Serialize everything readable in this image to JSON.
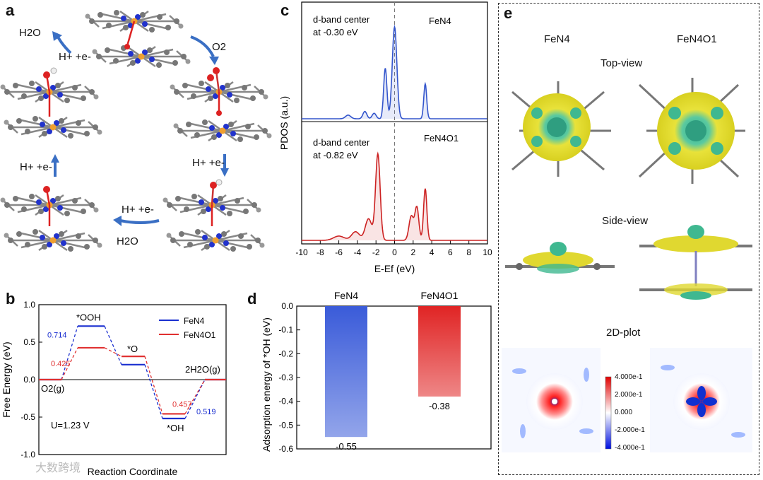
{
  "panels": {
    "a": "a",
    "b": "b",
    "c": "c",
    "d": "d",
    "e": "e"
  },
  "panel_a": {
    "h2o_top": "H2O",
    "hplus_top": "H+ +e-",
    "o2": "O2",
    "hplus_right": "H+ +e-",
    "hplus_bottom": "H+ +e-",
    "h2o_bottom": "H2O",
    "hplus_left": "H+ +e-"
  },
  "chart_data": [
    {
      "id": "b",
      "type": "line",
      "title": "",
      "xlabel": "Reaction Coordinate",
      "ylabel": "Free Energy (eV)",
      "ylim": [
        -1.0,
        1.0
      ],
      "yticks": [
        "1.0",
        "0.5",
        "0.0",
        "-0.5",
        "-1.0"
      ],
      "annotation": "U=1.23 V",
      "states": [
        "O2(g)",
        "*OOH",
        "*O",
        "*OH",
        "2H2O(g)"
      ],
      "series": [
        {
          "name": "FeN4",
          "color": "#1a2fd0",
          "values": [
            0.0,
            0.714,
            0.2,
            -0.519,
            0.0
          ],
          "step_labels": [
            "0.714",
            "0.519"
          ]
        },
        {
          "name": "FeN4O1",
          "color": "#e03030",
          "values": [
            0.0,
            0.425,
            0.31,
            -0.457,
            0.0
          ],
          "step_labels": [
            "0.425",
            "0.457"
          ]
        }
      ]
    },
    {
      "id": "c",
      "type": "area",
      "xlabel": "E-Ef (eV)",
      "ylabel": "PDOS (a.u.)",
      "xlim": [
        -10,
        10
      ],
      "xticks": [
        "-10",
        "-8",
        "-6",
        "-4",
        "-2",
        "0",
        "2",
        "4",
        "6",
        "8",
        "10"
      ],
      "series": [
        {
          "name": "FeN4",
          "label": "FeN4",
          "note_line1": "d-band center",
          "note_line2": "at -0.30 eV",
          "d_band_center": -0.3,
          "color": "#3355cc",
          "peaks": [
            {
              "x": 0.0,
              "h": 1.0,
              "w": 0.35
            },
            {
              "x": -1.0,
              "h": 0.55,
              "w": 0.25
            },
            {
              "x": 3.3,
              "h": 0.38,
              "w": 0.22
            },
            {
              "x": -2.2,
              "h": 0.06,
              "w": 0.3
            },
            {
              "x": -3.2,
              "h": 0.08,
              "w": 0.3
            },
            {
              "x": -5.0,
              "h": 0.04,
              "w": 0.4
            }
          ]
        },
        {
          "name": "FeN4O1",
          "label": "FeN4O1",
          "note_line1": "d-band center",
          "note_line2": "at -0.82 eV",
          "d_band_center": -0.82,
          "color": "#cc2222",
          "peaks": [
            {
              "x": -1.8,
              "h": 1.0,
              "w": 0.35
            },
            {
              "x": -2.8,
              "h": 0.25,
              "w": 0.5
            },
            {
              "x": -4.2,
              "h": 0.1,
              "w": 0.6
            },
            {
              "x": 1.8,
              "h": 0.28,
              "w": 0.35
            },
            {
              "x": 2.4,
              "h": 0.38,
              "w": 0.3
            },
            {
              "x": 3.3,
              "h": 0.6,
              "w": 0.25
            },
            {
              "x": -6.0,
              "h": 0.05,
              "w": 0.8
            }
          ]
        }
      ]
    },
    {
      "id": "d",
      "type": "bar",
      "ylabel": "Adsorption energy of *OH (eV)",
      "categories": [
        "FeN4",
        "FeN4O1"
      ],
      "values": [
        -0.55,
        -0.38
      ],
      "value_labels": [
        "-0.55",
        "-0.38"
      ],
      "colors": [
        "#3a5bd9",
        "#e02424"
      ],
      "ylim": [
        -0.6,
        0.0
      ],
      "yticks": [
        "0.0",
        "-0.1",
        "-0.2",
        "-0.3",
        "-0.4",
        "-0.5",
        "-0.6"
      ]
    },
    {
      "id": "e-colorbar",
      "type": "heatmap",
      "ticks": [
        "4.000e-1",
        "2.000e-1",
        "0.000",
        "-2.000e-1",
        "-4.000e-1"
      ]
    }
  ],
  "panel_e": {
    "col1": "FeN4",
    "col2": "FeN4O1",
    "top_view": "Top-view",
    "side_view": "Side-view",
    "plot2d": "2D-plot"
  },
  "watermark": "大数跨境"
}
